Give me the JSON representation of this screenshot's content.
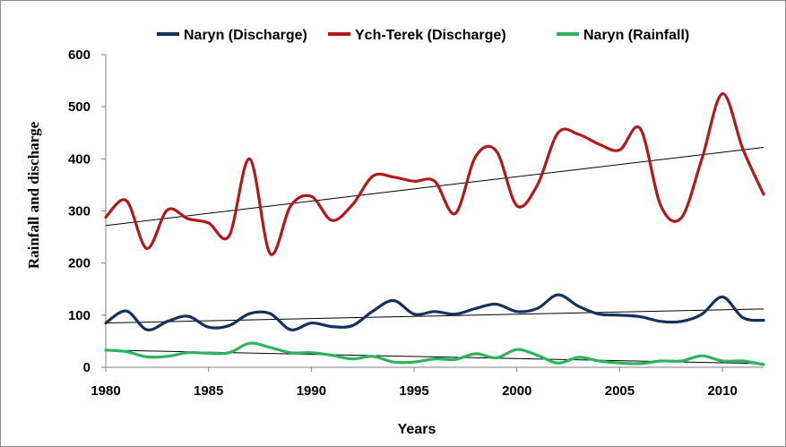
{
  "chart_data": {
    "type": "line",
    "title": "",
    "xlabel": "Years",
    "ylabel": "Rainfall and discharge",
    "xlim": [
      1980,
      2012
    ],
    "ylim": [
      0,
      600
    ],
    "x_ticks": [
      1980,
      1985,
      1990,
      1995,
      2000,
      2005,
      2010
    ],
    "y_ticks": [
      0,
      100,
      200,
      300,
      400,
      500,
      600
    ],
    "grid": false,
    "smooth": true,
    "legend_position": "top",
    "x": [
      1980,
      1981,
      1982,
      1983,
      1984,
      1985,
      1986,
      1987,
      1988,
      1989,
      1990,
      1991,
      1992,
      1993,
      1994,
      1995,
      1996,
      1997,
      1998,
      1999,
      2000,
      2001,
      2002,
      2003,
      2004,
      2005,
      2006,
      2007,
      2008,
      2009,
      2010,
      2011,
      2012
    ],
    "series": [
      {
        "name": "Naryn (Discharge)",
        "color": "#13315c",
        "values": [
          85,
          108,
          72,
          88,
          98,
          77,
          80,
          103,
          103,
          72,
          85,
          78,
          80,
          108,
          128,
          102,
          107,
          102,
          113,
          121,
          107,
          113,
          139,
          117,
          102,
          100,
          97,
          88,
          88,
          102,
          135,
          95,
          90
        ],
        "trend": [
          85,
          112
        ]
      },
      {
        "name": "Ych-Terek (Discharge)",
        "color": "#b01a1a",
        "values": [
          288,
          320,
          228,
          302,
          285,
          277,
          252,
          400,
          218,
          310,
          328,
          282,
          312,
          367,
          365,
          357,
          357,
          295,
          405,
          415,
          310,
          350,
          450,
          447,
          428,
          417,
          458,
          310,
          287,
          400,
          525,
          418,
          332
        ],
        "trend": [
          272,
          422
        ]
      },
      {
        "name": "Naryn (Rainfall)",
        "color": "#2db35e",
        "values": [
          33,
          30,
          20,
          21,
          28,
          27,
          28,
          46,
          38,
          28,
          28,
          23,
          16,
          21,
          10,
          10,
          16,
          15,
          26,
          18,
          34,
          23,
          8,
          19,
          12,
          8,
          7,
          12,
          12,
          22,
          12,
          12,
          5
        ],
        "trend": [
          33,
          7
        ]
      }
    ]
  }
}
